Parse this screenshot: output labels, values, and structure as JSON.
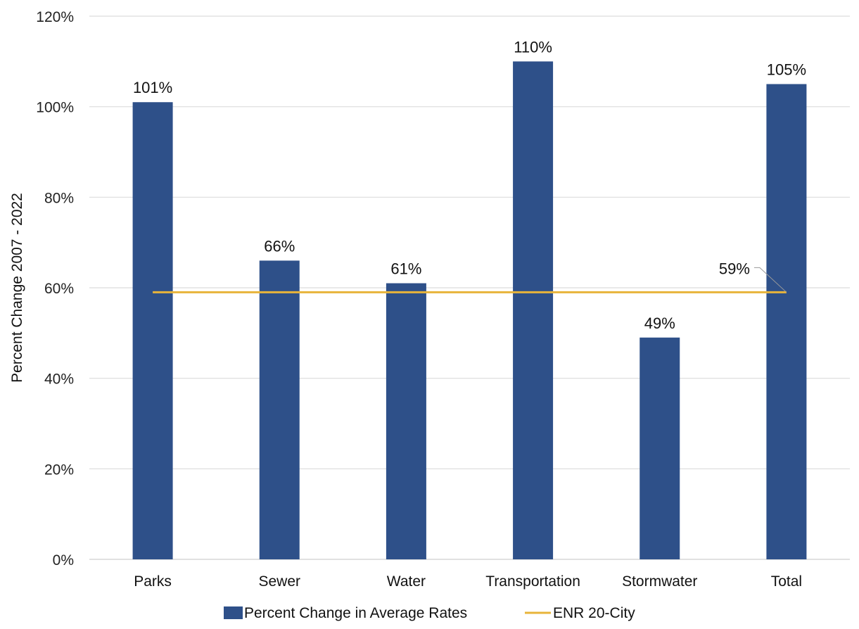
{
  "chart_data": {
    "type": "bar",
    "title": "",
    "xlabel": "",
    "ylabel": "Percent Change 2007 - 2022",
    "ylim": [
      0,
      120
    ],
    "yticks": [
      "0%",
      "20%",
      "40%",
      "60%",
      "80%",
      "100%",
      "120%"
    ],
    "grid": true,
    "legend_position": "bottom",
    "categories": [
      "Parks",
      "Sewer",
      "Water",
      "Transportation",
      "Stormwater",
      "Total"
    ],
    "series": [
      {
        "name": "Percent Change in Average Rates",
        "type": "bar",
        "values": [
          101,
          66,
          61,
          110,
          49,
          105
        ],
        "labels": [
          "101%",
          "66%",
          "61%",
          "110%",
          "49%",
          "105%"
        ],
        "color": "#2E5089"
      },
      {
        "name": "ENR 20-City",
        "type": "line",
        "value": 59,
        "label": "59%",
        "color": "#E8B43A"
      }
    ]
  }
}
